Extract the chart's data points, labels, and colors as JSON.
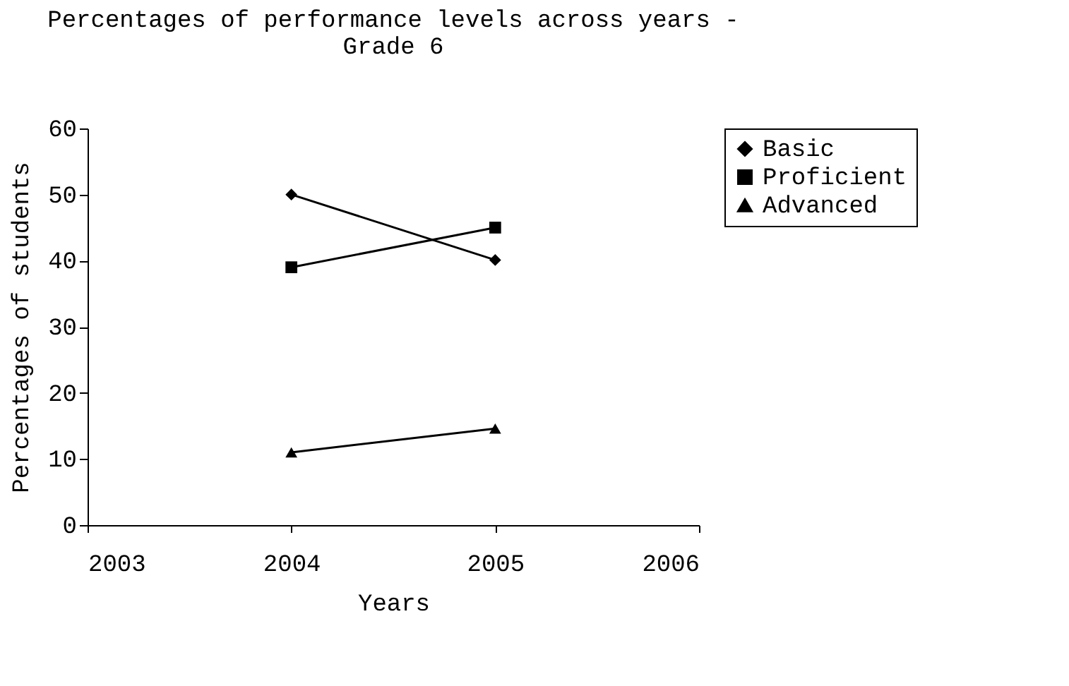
{
  "chart_data": {
    "type": "line",
    "title": [
      "Percentages of performance levels across years -",
      "Grade 6"
    ],
    "xlabel": "Years",
    "ylabel": "Percentages of students",
    "x": [
      2004,
      2005
    ],
    "series": [
      {
        "name": "Basic",
        "color": "#000000",
        "marker": "diamond",
        "values": [
          50,
          40.1
        ]
      },
      {
        "name": "Proficient",
        "color": "#000000",
        "marker": "square",
        "values": [
          39,
          45
        ]
      },
      {
        "name": "Advanced",
        "color": "#000000",
        "marker": "triangle",
        "values": [
          11,
          14.6
        ]
      }
    ],
    "xlim": [
      2003,
      2006
    ],
    "xticks": [
      2003,
      2004,
      2005,
      2006
    ],
    "ylim": [
      0,
      60
    ],
    "yticks": [
      0,
      10,
      20,
      30,
      40,
      50,
      60
    ],
    "grid": false,
    "legend": "right",
    "line_style": "solid"
  }
}
